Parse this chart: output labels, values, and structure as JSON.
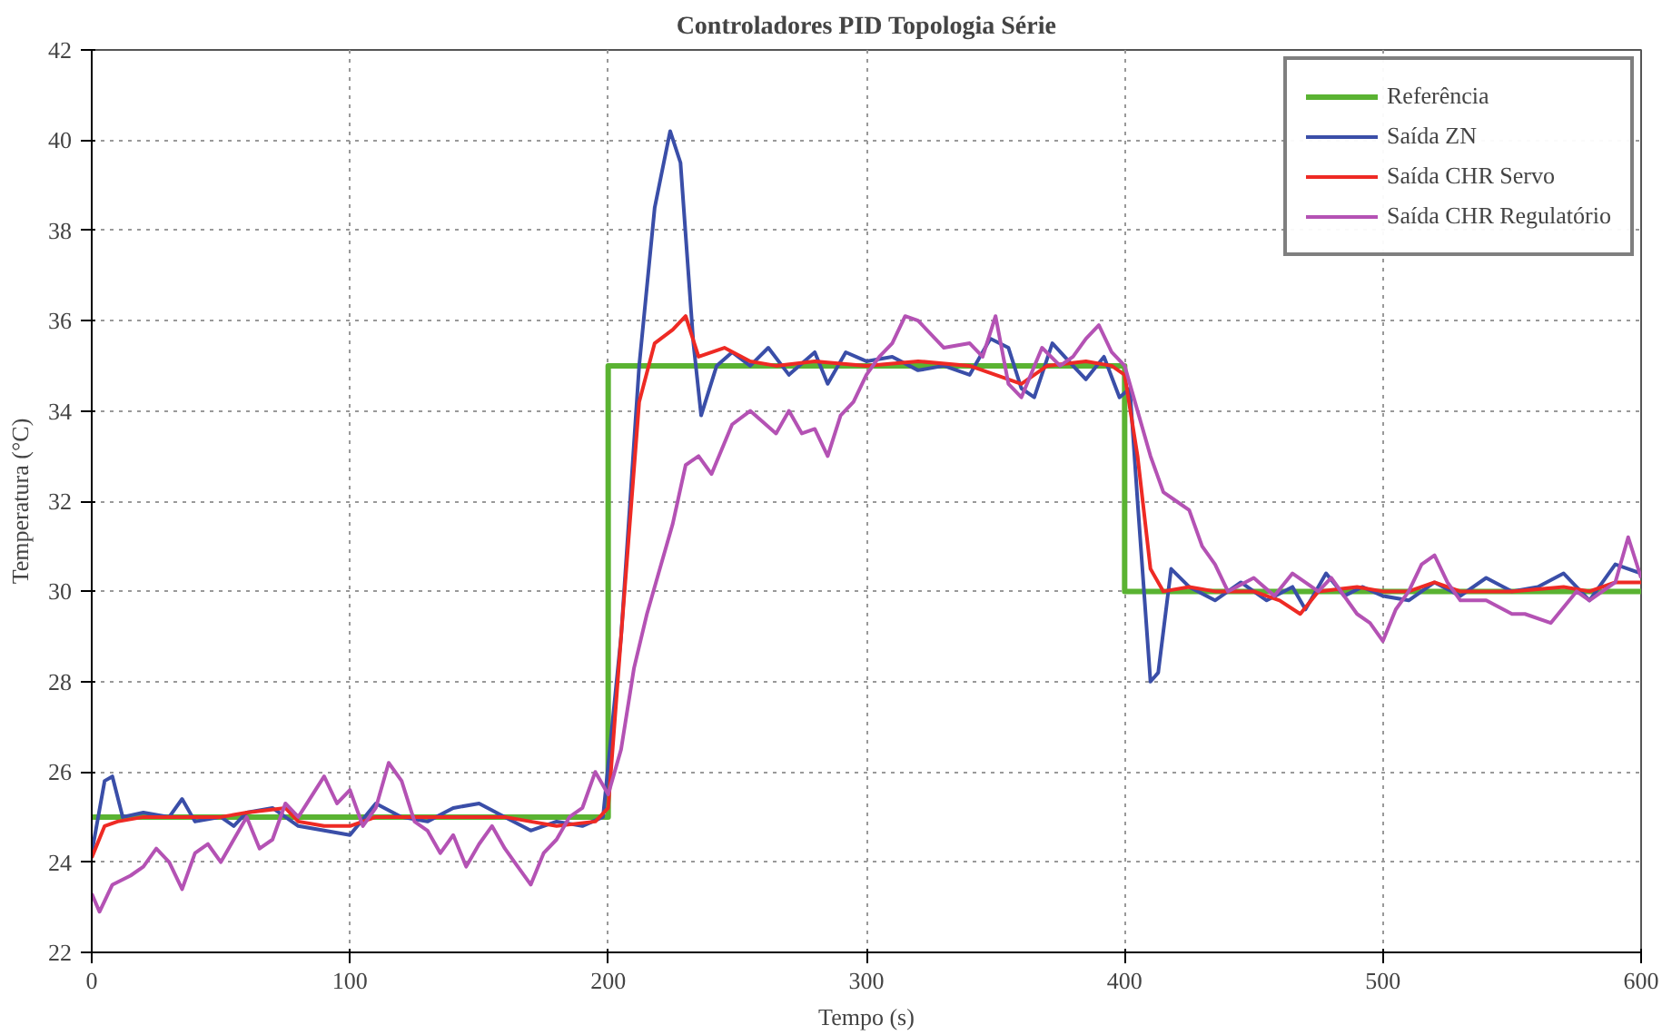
{
  "chart_data": {
    "type": "line",
    "title": "Controladores PID Topologia Série",
    "xlabel": "Tempo (s)",
    "ylabel": "Temperatura (°C)",
    "xlim": [
      0,
      600
    ],
    "ylim": [
      22,
      42
    ],
    "xticks": [
      0,
      100,
      200,
      300,
      400,
      500,
      600
    ],
    "yticks": [
      22,
      24,
      26,
      28,
      30,
      32,
      34,
      36,
      38,
      40,
      42
    ],
    "grid": true,
    "legend": "top right",
    "line_style": "solid",
    "marker": "none",
    "series": [
      {
        "name": "Referência",
        "color": "#5ab332",
        "x": [
          0,
          200,
          200,
          400,
          400,
          600
        ],
        "values": [
          25,
          25,
          35,
          35,
          30,
          30
        ]
      },
      {
        "name": "Saída ZN",
        "color": "#3a4ea8",
        "x": [
          0,
          5,
          8,
          12,
          20,
          30,
          35,
          40,
          50,
          55,
          60,
          70,
          80,
          90,
          100,
          110,
          120,
          130,
          140,
          150,
          160,
          170,
          180,
          190,
          198,
          205,
          212,
          218,
          224,
          228,
          233,
          236,
          242,
          248,
          255,
          262,
          270,
          280,
          285,
          292,
          300,
          310,
          320,
          330,
          340,
          348,
          355,
          360,
          365,
          372,
          380,
          385,
          392,
          398,
          402,
          405,
          410,
          413,
          418,
          425,
          435,
          445,
          455,
          465,
          470,
          478,
          485,
          492,
          500,
          510,
          520,
          530,
          540,
          550,
          560,
          570,
          580,
          590,
          600
        ],
        "values": [
          24.2,
          25.8,
          25.9,
          25.0,
          25.1,
          25.0,
          25.4,
          24.9,
          25.0,
          24.8,
          25.1,
          25.2,
          24.8,
          24.7,
          24.6,
          25.3,
          25.0,
          24.9,
          25.2,
          25.3,
          25.0,
          24.7,
          24.9,
          24.8,
          25.0,
          29,
          35,
          38.5,
          40.2,
          39.5,
          35.5,
          33.9,
          35.0,
          35.3,
          35.0,
          35.4,
          34.8,
          35.3,
          34.6,
          35.3,
          35.1,
          35.2,
          34.9,
          35.0,
          34.8,
          35.6,
          35.4,
          34.5,
          34.3,
          35.5,
          35.0,
          34.7,
          35.2,
          34.3,
          34.5,
          32,
          28.0,
          28.2,
          30.5,
          30.1,
          29.8,
          30.2,
          29.8,
          30.1,
          29.6,
          30.4,
          29.9,
          30.1,
          29.9,
          29.8,
          30.2,
          29.9,
          30.3,
          30.0,
          30.1,
          30.4,
          29.8,
          30.6,
          30.4
        ]
      },
      {
        "name": "Saída CHR Servo",
        "color": "#ee2a24",
        "x": [
          0,
          5,
          10,
          20,
          30,
          50,
          60,
          75,
          80,
          90,
          100,
          110,
          120,
          140,
          160,
          170,
          180,
          195,
          200,
          205,
          212,
          218,
          225,
          230,
          235,
          245,
          255,
          265,
          280,
          300,
          320,
          340,
          350,
          360,
          370,
          385,
          395,
          400,
          405,
          410,
          415,
          425,
          435,
          450,
          460,
          468,
          475,
          490,
          500,
          510,
          520,
          530,
          550,
          570,
          580,
          590,
          600
        ],
        "values": [
          24.1,
          24.8,
          24.9,
          25.0,
          25.0,
          25.0,
          25.1,
          25.2,
          24.9,
          24.8,
          24.8,
          25.0,
          25.0,
          25.0,
          25.0,
          24.9,
          24.8,
          24.9,
          25.2,
          29,
          34.2,
          35.5,
          35.8,
          36.1,
          35.2,
          35.4,
          35.1,
          35.0,
          35.1,
          35.0,
          35.1,
          35.0,
          34.8,
          34.6,
          35.0,
          35.1,
          35.0,
          34.8,
          33,
          30.5,
          30.0,
          30.1,
          30.0,
          30.0,
          29.8,
          29.5,
          30.0,
          30.1,
          30.0,
          30.0,
          30.2,
          30.0,
          30.0,
          30.1,
          30.0,
          30.2,
          30.2
        ]
      },
      {
        "name": "Saída CHR Regulatório",
        "color": "#b452b4",
        "x": [
          0,
          3,
          8,
          15,
          20,
          25,
          30,
          35,
          40,
          45,
          50,
          55,
          60,
          65,
          70,
          75,
          80,
          90,
          95,
          100,
          105,
          110,
          115,
          120,
          125,
          130,
          135,
          140,
          145,
          150,
          155,
          160,
          165,
          170,
          175,
          180,
          185,
          190,
          195,
          198,
          200,
          205,
          210,
          215,
          220,
          225,
          230,
          235,
          240,
          248,
          255,
          265,
          270,
          275,
          280,
          285,
          290,
          295,
          300,
          305,
          310,
          315,
          320,
          330,
          340,
          345,
          350,
          355,
          360,
          368,
          375,
          380,
          385,
          390,
          395,
          400,
          405,
          410,
          415,
          420,
          425,
          430,
          435,
          440,
          450,
          458,
          465,
          475,
          480,
          490,
          495,
          500,
          505,
          510,
          515,
          520,
          525,
          530,
          540,
          550,
          555,
          565,
          575,
          580,
          590,
          595,
          600
        ],
        "values": [
          23.3,
          22.9,
          23.5,
          23.7,
          23.9,
          24.3,
          24.0,
          23.4,
          24.2,
          24.4,
          24.0,
          24.5,
          25.0,
          24.3,
          24.5,
          25.3,
          25.0,
          25.9,
          25.3,
          25.6,
          24.8,
          25.2,
          26.2,
          25.8,
          24.9,
          24.7,
          24.2,
          24.6,
          23.9,
          24.4,
          24.8,
          24.3,
          23.9,
          23.5,
          24.2,
          24.5,
          25.0,
          25.2,
          26.0,
          25.7,
          25.5,
          26.5,
          28.3,
          29.5,
          30.5,
          31.5,
          32.8,
          33.0,
          32.6,
          33.7,
          34.0,
          33.5,
          34.0,
          33.5,
          33.6,
          33.0,
          33.9,
          34.2,
          34.8,
          35.2,
          35.5,
          36.1,
          36.0,
          35.4,
          35.5,
          35.2,
          36.1,
          34.6,
          34.3,
          35.4,
          35.0,
          35.2,
          35.6,
          35.9,
          35.3,
          35.0,
          34.0,
          33.0,
          32.2,
          32.0,
          31.8,
          31.0,
          30.6,
          30.0,
          30.3,
          29.9,
          30.4,
          30.0,
          30.3,
          29.5,
          29.3,
          28.9,
          29.6,
          30.0,
          30.6,
          30.8,
          30.2,
          29.8,
          29.8,
          29.5,
          29.5,
          29.3,
          30.0,
          29.8,
          30.2,
          31.2,
          30.3
        ]
      }
    ]
  }
}
